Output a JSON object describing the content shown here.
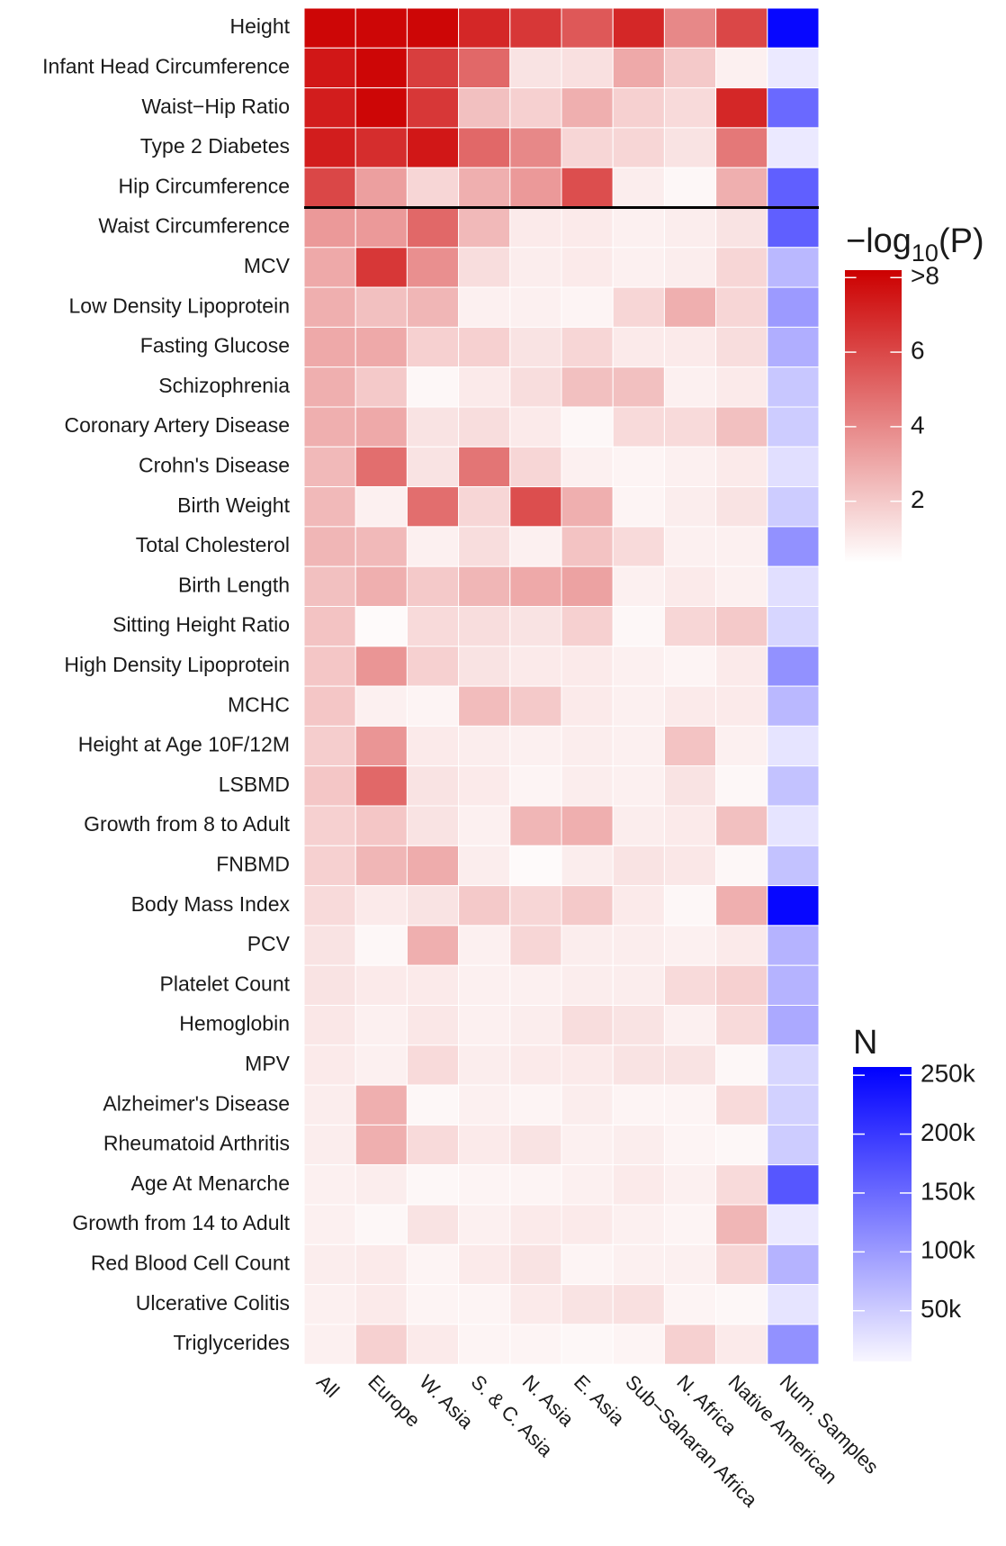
{
  "chart_data": {
    "type": "heatmap",
    "columns": [
      "All",
      "Europe",
      "W. Asia",
      "S. & C. Asia",
      "N. Asia",
      "E. Asia",
      "Sub−Saharan Africa",
      "N. Africa",
      "Native American",
      "Num. Samples"
    ],
    "rows": [
      "Height",
      "Infant Head Circumference",
      "Waist−Hip Ratio",
      "Type 2 Diabetes",
      "Hip Circumference",
      "Waist Circumference",
      "MCV",
      "Low Density Lipoprotein",
      "Fasting Glucose",
      "Schizophrenia",
      "Coronary Artery Disease",
      "Crohn's Disease",
      "Birth Weight",
      "Total Cholesterol",
      "Birth Length",
      "Sitting Height Ratio",
      "High Density Lipoprotein",
      "MCHC",
      "Height at Age 10F/12M",
      "LSBMD",
      "Growth from 8 to Adult",
      "FNBMD",
      "Body Mass Index",
      "PCV",
      "Platelet Count",
      "Hemoglobin",
      "MPV",
      "Alzheimer's Disease",
      "Rheumatoid Arthritis",
      "Age At Menarche",
      "Growth from 14 to Adult",
      "Red Blood Cell Count",
      "Ulcerative Colitis",
      "Triglycerides"
    ],
    "values": [
      [
        8,
        8,
        8,
        7,
        6.5,
        5.5,
        7,
        4,
        6
      ],
      [
        7.5,
        8,
        6.3,
        5,
        1.2,
        1.3,
        3,
        2,
        0.8
      ],
      [
        7.3,
        8,
        6.5,
        2.3,
        1.8,
        2.8,
        1.8,
        1.5,
        7
      ],
      [
        7.3,
        6.8,
        7.5,
        5,
        4,
        1.6,
        1.6,
        1.2,
        4.5
      ],
      [
        6,
        3.3,
        1.6,
        2.8,
        3.5,
        5.8,
        0.9,
        0.6,
        2.8
      ],
      [
        3.5,
        3.5,
        5,
        2.5,
        1,
        1,
        0.8,
        0.9,
        1.2
      ],
      [
        3,
        6.5,
        3.8,
        1.4,
        0.9,
        1,
        0.8,
        0.9,
        1.6
      ],
      [
        2.8,
        2.3,
        2.6,
        0.8,
        0.8,
        0.7,
        1.6,
        2.8,
        1.6
      ],
      [
        3,
        3,
        1.8,
        1.8,
        1.2,
        1.6,
        1,
        1,
        1.4
      ],
      [
        2.8,
        2,
        0.6,
        1,
        1.4,
        2.3,
        2.3,
        0.8,
        1
      ],
      [
        2.8,
        3,
        1.2,
        1.4,
        1,
        0.6,
        1.5,
        1.5,
        2.3
      ],
      [
        2.5,
        4.8,
        1.2,
        4.6,
        1.6,
        0.8,
        0.7,
        0.8,
        1
      ],
      [
        2.5,
        0.8,
        4.8,
        1.6,
        5.8,
        2.8,
        0.7,
        0.9,
        1.2
      ],
      [
        2.6,
        2.5,
        0.8,
        1.4,
        0.8,
        2.2,
        1.5,
        0.8,
        0.8
      ],
      [
        2.3,
        2.8,
        2,
        2.6,
        3,
        3.2,
        0.8,
        1,
        0.8
      ],
      [
        2.2,
        0.5,
        1.5,
        1.4,
        1.2,
        1.8,
        0.6,
        1.6,
        2
      ],
      [
        2.1,
        3.6,
        1.8,
        1.2,
        1,
        1,
        0.8,
        0.7,
        1
      ],
      [
        2.1,
        0.8,
        0.7,
        2.4,
        2,
        1,
        0.8,
        1,
        1
      ],
      [
        1.9,
        3.6,
        1,
        0.9,
        0.8,
        0.9,
        0.8,
        2.2,
        0.8
      ],
      [
        2.1,
        5,
        1.2,
        1,
        0.7,
        0.9,
        0.8,
        1.2,
        0.6
      ],
      [
        1.8,
        2.1,
        1.2,
        0.8,
        2.6,
        2.8,
        0.9,
        1,
        2.3
      ],
      [
        1.8,
        2.6,
        2.9,
        0.9,
        0.5,
        0.9,
        1.2,
        1.1,
        0.6
      ],
      [
        1.5,
        1,
        1.2,
        2,
        1.6,
        2,
        1,
        0.6,
        2.8
      ],
      [
        1.2,
        0.6,
        2.8,
        0.8,
        1.6,
        0.9,
        0.9,
        0.8,
        1
      ],
      [
        1.2,
        1,
        1,
        0.8,
        0.8,
        0.9,
        0.9,
        1.5,
        1.8
      ],
      [
        1.1,
        0.8,
        1.1,
        0.8,
        0.9,
        1.4,
        1.2,
        0.8,
        1.5
      ],
      [
        1,
        0.8,
        1.5,
        0.9,
        1,
        1,
        1.2,
        1.2,
        0.6
      ],
      [
        0.9,
        2.8,
        0.6,
        0.8,
        0.7,
        0.9,
        0.7,
        0.7,
        1.5
      ],
      [
        0.9,
        2.8,
        1.5,
        1,
        1.2,
        0.8,
        0.9,
        0.7,
        0.6
      ],
      [
        0.8,
        0.9,
        0.6,
        0.7,
        0.7,
        0.8,
        1,
        0.8,
        1.5
      ],
      [
        0.8,
        0.6,
        1.2,
        0.8,
        1,
        1,
        0.8,
        0.7,
        2.6
      ],
      [
        0.9,
        1,
        0.7,
        1,
        1.2,
        0.7,
        0.8,
        0.8,
        1.6
      ],
      [
        0.8,
        1,
        0.7,
        0.7,
        1,
        1.2,
        1.3,
        0.7,
        0.6
      ],
      [
        0.8,
        1.8,
        1,
        0.7,
        0.7,
        0.6,
        0.7,
        1.8,
        1
      ]
    ],
    "n_values": [
      250000,
      20000,
      150000,
      20000,
      160000,
      160000,
      70000,
      100000,
      80000,
      55000,
      50000,
      30000,
      50000,
      110000,
      30000,
      40000,
      110000,
      70000,
      25000,
      60000,
      25000,
      60000,
      250000,
      75000,
      75000,
      85000,
      40000,
      45000,
      50000,
      170000,
      20000,
      75000,
      25000,
      110000
    ],
    "color_low": "#ffffff",
    "color_high": "#cc0000",
    "color_lim": [
      0.35,
      8.2
    ],
    "color_ticks": [
      2,
      4,
      6,
      {
        "value": 8,
        "label": ">8"
      }
    ],
    "color_title": {
      "prefix": "−log",
      "sub": "10",
      "suffix": "(P)"
    },
    "n_color_low": "#f8f6ff",
    "n_color_high": "#0000ff",
    "n_color_lim": [
      7000,
      257000
    ],
    "n_ticks": [
      {
        "value": 50000,
        "label": "50k"
      },
      {
        "value": 100000,
        "label": "100k"
      },
      {
        "value": 150000,
        "label": "150k"
      },
      {
        "value": 200000,
        "label": "200k"
      },
      {
        "value": 250000,
        "label": "250k"
      }
    ],
    "n_title": "N"
  }
}
